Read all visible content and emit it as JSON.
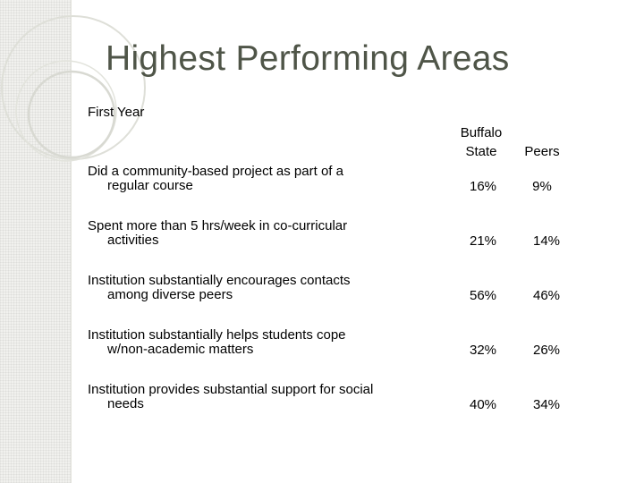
{
  "slide": {
    "title": "Highest Performing Areas",
    "subtitle": "First Year"
  },
  "table": {
    "columns": [
      "Buffalo State",
      "Peers"
    ],
    "rows": [
      {
        "label": "Did a community-based project as part of a regular course",
        "buffalo_state": "16%",
        "peers": "9%"
      },
      {
        "label": "Spent more than 5 hrs/week in co-curricular activities",
        "buffalo_state": "21%",
        "peers": "14%"
      },
      {
        "label": "Institution substantially encourages contacts among diverse peers",
        "buffalo_state": "56%",
        "peers": "46%"
      },
      {
        "label": "Institution substantially helps students cope w/non-academic matters",
        "buffalo_state": "32%",
        "peers": "26%"
      },
      {
        "label": "Institution provides substantial support for social needs",
        "buffalo_state": "40%",
        "peers": "34%"
      }
    ]
  },
  "colors": {
    "title": "#4f5548",
    "band": "#f1f1ee",
    "circles": "#dcdcd6"
  }
}
